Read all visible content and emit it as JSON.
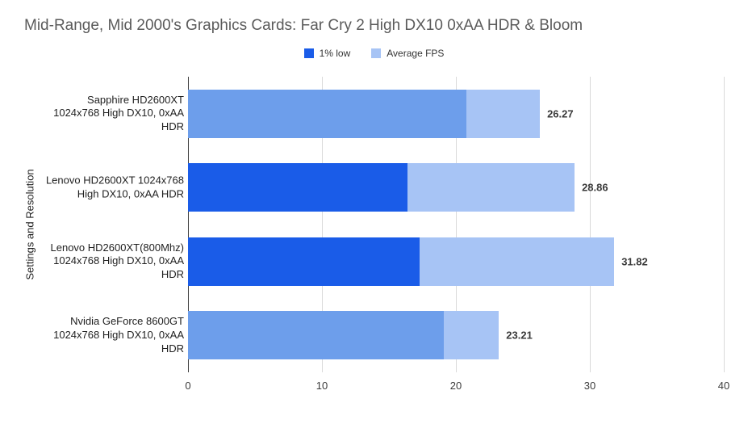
{
  "chart_data": {
    "type": "bar",
    "orientation": "horizontal",
    "title": "Mid-Range, Mid 2000's Graphics Cards: Far Cry 2 High DX10 0xAA HDR & Bloom",
    "xlabel": "",
    "ylabel": "Settings and Resolution",
    "xlim": [
      0,
      40
    ],
    "xticks": [
      0,
      10,
      20,
      30,
      40
    ],
    "grid": true,
    "legend_position": "top",
    "categories": [
      "Sapphire HD2600XT\n1024x768 High DX10, 0xAA\nHDR",
      "Lenovo HD2600XT 1024x768\nHigh DX10, 0xAA HDR",
      "Lenovo HD2600XT(800Mhz)\n1024x768 High DX10, 0xAA\nHDR",
      "Nvidia GeForce 8600GT\n1024x768 High DX10, 0xAA\nHDR"
    ],
    "series": [
      {
        "name": "1% low",
        "color": "#1a5ce8",
        "point_colors": [
          "#6d9eeb",
          "#1a5ce8",
          "#1a5ce8",
          "#6d9eeb"
        ],
        "values": [
          20.8,
          16.4,
          17.3,
          19.1
        ]
      },
      {
        "name": "Average FPS",
        "color": "#a7c4f5",
        "values": [
          26.27,
          28.86,
          31.82,
          23.21
        ]
      }
    ],
    "value_labels": [
      "26.27",
      "28.86",
      "31.82",
      "23.21"
    ],
    "colors": {
      "background": "#ffffff",
      "gridline": "#dadada",
      "axis_line": "#424242",
      "title_text": "#5b5b5b",
      "label_text": "#1f1f1f"
    }
  }
}
